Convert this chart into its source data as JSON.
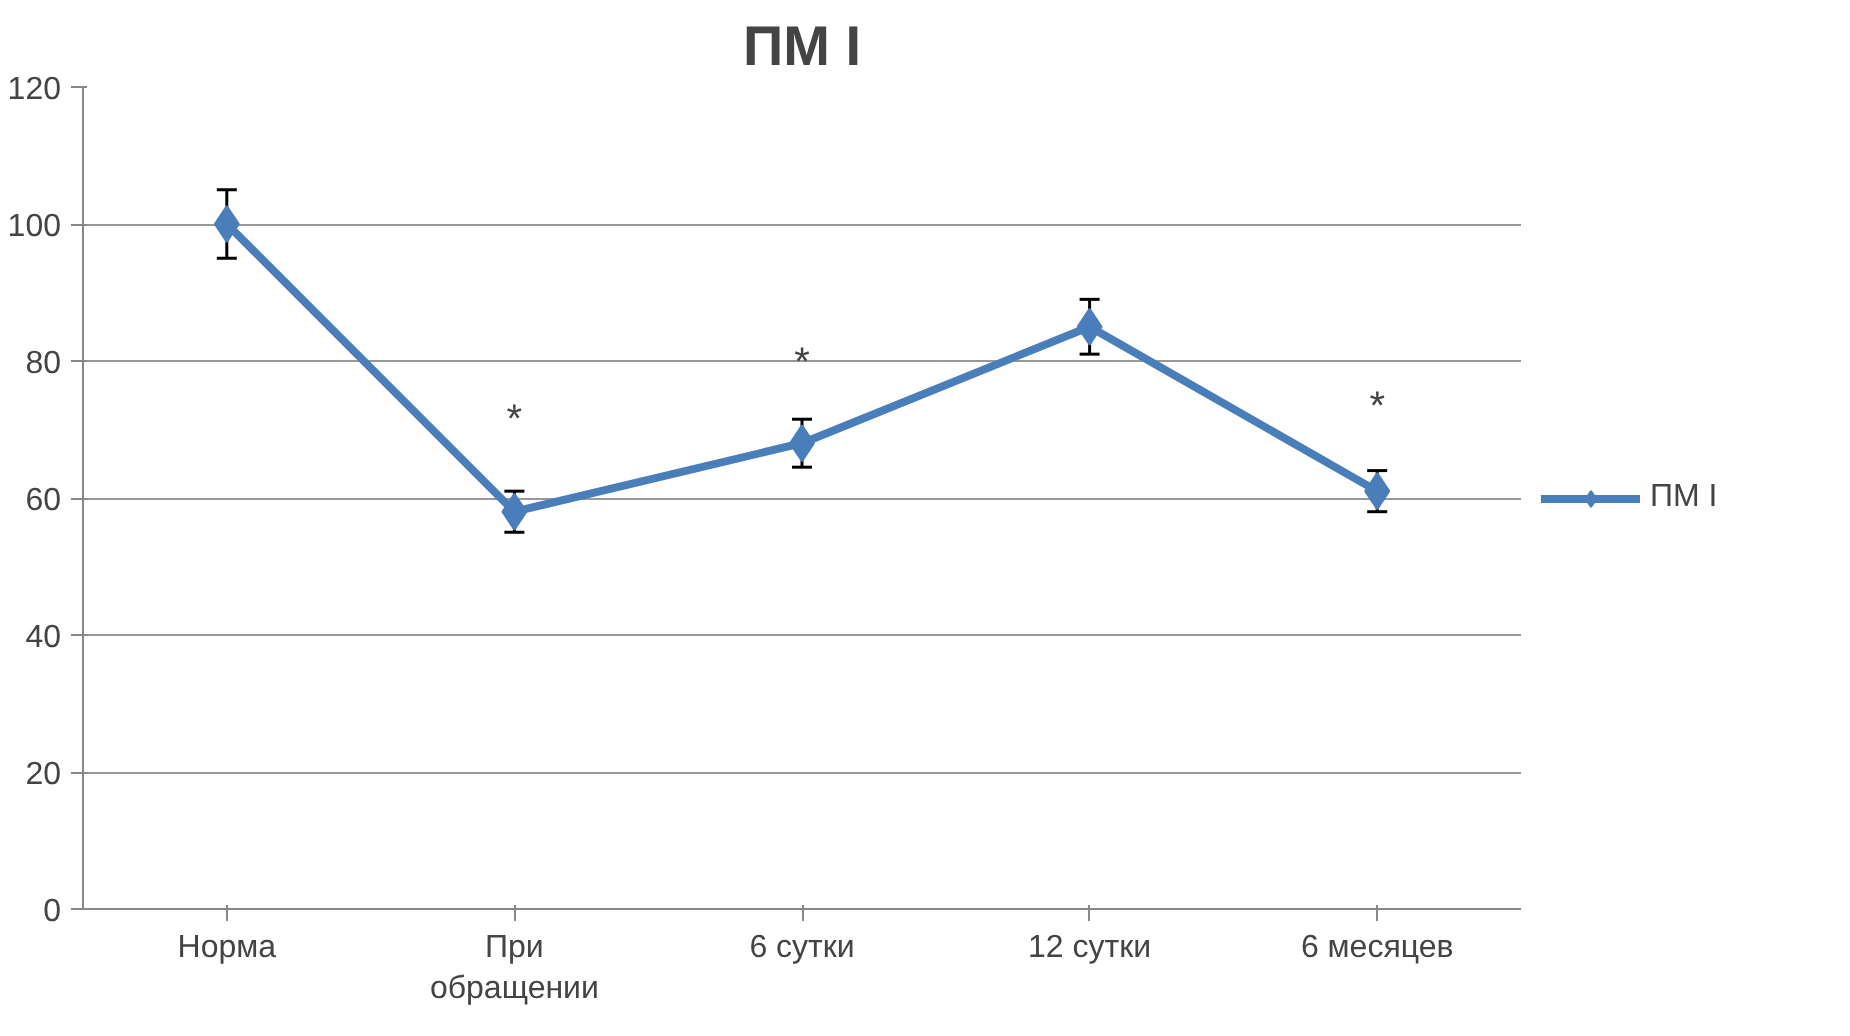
{
  "chart_data": {
    "type": "line",
    "title": "ПМ I",
    "categories": [
      "Норма",
      "При обращении",
      "6 сутки",
      "12 сутки",
      "6 месяцев"
    ],
    "series": [
      {
        "name": "ПМ I",
        "color": "#4a7ebb",
        "values": [
          100,
          58,
          68,
          85,
          61
        ],
        "errors": [
          5,
          3,
          3.5,
          4,
          3
        ]
      }
    ],
    "ylim": [
      0,
      120
    ],
    "yticks": [
      0,
      20,
      40,
      60,
      80,
      100,
      120
    ],
    "grid": "y",
    "legend": "right",
    "marker": "diamond",
    "line_style": "solid",
    "annotations": [
      "*",
      "*",
      "*"
    ]
  }
}
